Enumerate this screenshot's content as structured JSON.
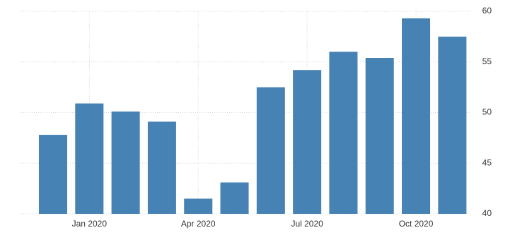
{
  "chart_data": {
    "type": "bar",
    "categories": [
      null,
      "Jan 2020",
      null,
      null,
      "Apr 2020",
      null,
      null,
      "Jul 2020",
      null,
      null,
      "Oct 2020",
      null
    ],
    "values": [
      47.8,
      50.9,
      50.1,
      49.1,
      41.5,
      43.1,
      52.5,
      54.2,
      56.0,
      55.4,
      59.3,
      57.5
    ],
    "color": "#4682b4",
    "ylim": [
      40,
      60
    ],
    "yticks": [
      40,
      45,
      50,
      55,
      60
    ],
    "grid": true,
    "y_axis_side": "right"
  }
}
